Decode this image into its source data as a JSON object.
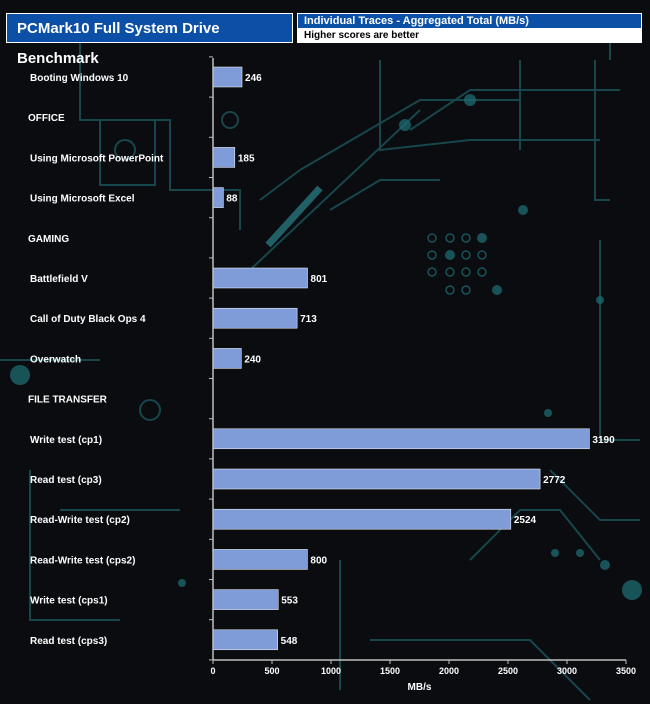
{
  "header": {
    "title": "PCMark10 Full System Drive Benchmark",
    "subtitle": "Individual Traces - Aggregated Total (MB/s)",
    "note": "Higher scores are better"
  },
  "colors": {
    "bar": "#7f9bd8",
    "header_blue": "#0b4fa6",
    "background": "#0a0c0f",
    "circuit": "#1d5f66"
  },
  "chart_data": {
    "type": "bar",
    "orientation": "horizontal",
    "categories": [
      "Booting Windows 10",
      "OFFICE",
      "Using Microsoft PowerPoint",
      "Using Microsoft Excel",
      "GAMING",
      "Battlefield V",
      "Call of Duty Black Ops 4",
      "Overwatch",
      "FILE TRANSFER",
      "Write test (cp1)",
      "Read test (cp3)",
      "Read-Write test (cp2)",
      "Read-Write test (cps2)",
      "Write test (cps1)",
      "Read test (cps3)"
    ],
    "values": [
      246,
      null,
      185,
      88,
      null,
      801,
      713,
      240,
      null,
      3190,
      2772,
      2524,
      800,
      553,
      548
    ],
    "xlabel": "MB/s",
    "xlim": [
      0,
      3500
    ],
    "xticks": [
      0,
      500,
      1000,
      1500,
      2000,
      2500,
      3000,
      3500
    ],
    "grid": false,
    "legend": "none"
  }
}
